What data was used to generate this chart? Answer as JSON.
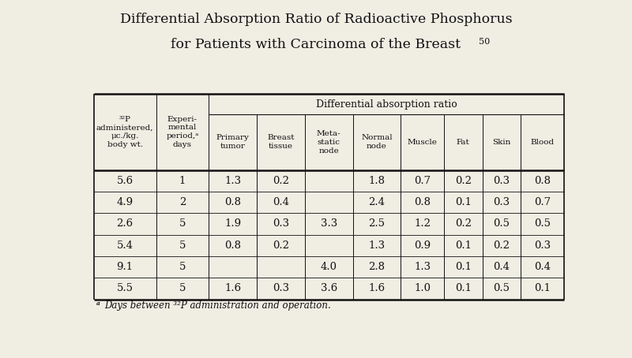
{
  "title_line1": "Differential Absorption Ratio of Radioactive Phosphorus",
  "title_line2": "for Patients with Carcinoma of the Breast",
  "title_superscript": "50",
  "bg_color": "#f0ede3",
  "text_color": "#111111",
  "col_headers_sub": [
    "32P\nadministered,\nμc./kg.\nbody wt.",
    "Experi-\nmental\nperiod,a\ndays",
    "Primary\ntumor",
    "Breast\ntissue",
    "Meta-\nstatic\nnode",
    "Normal\nnode",
    "Muscle",
    "Fat",
    "Skin",
    "Blood"
  ],
  "rows": [
    [
      "5.6",
      "1",
      "1.3",
      "0.2",
      "",
      "1.8",
      "0.7",
      "0.2",
      "0.3",
      "0.8"
    ],
    [
      "4.9",
      "2",
      "0.8",
      "0.4",
      "",
      "2.4",
      "0.8",
      "0.1",
      "0.3",
      "0.7"
    ],
    [
      "2.6",
      "5",
      "1.9",
      "0.3",
      "3.3",
      "2.5",
      "1.2",
      "0.2",
      "0.5",
      "0.5"
    ],
    [
      "5.4",
      "5",
      "0.8",
      "0.2",
      "",
      "1.3",
      "0.9",
      "0.1",
      "0.2",
      "0.3"
    ],
    [
      "9.1",
      "5",
      "",
      "",
      "4.0",
      "2.8",
      "1.3",
      "0.1",
      "0.4",
      "0.4"
    ],
    [
      "5.5",
      "5",
      "1.6",
      "0.3",
      "3.6",
      "1.6",
      "1.0",
      "0.1",
      "0.5",
      "0.1"
    ]
  ],
  "col_widths_rel": [
    1.3,
    1.1,
    1.0,
    1.0,
    1.0,
    1.0,
    0.9,
    0.8,
    0.8,
    0.9
  ],
  "footnote_a": "a Days between 32P administration and operation."
}
